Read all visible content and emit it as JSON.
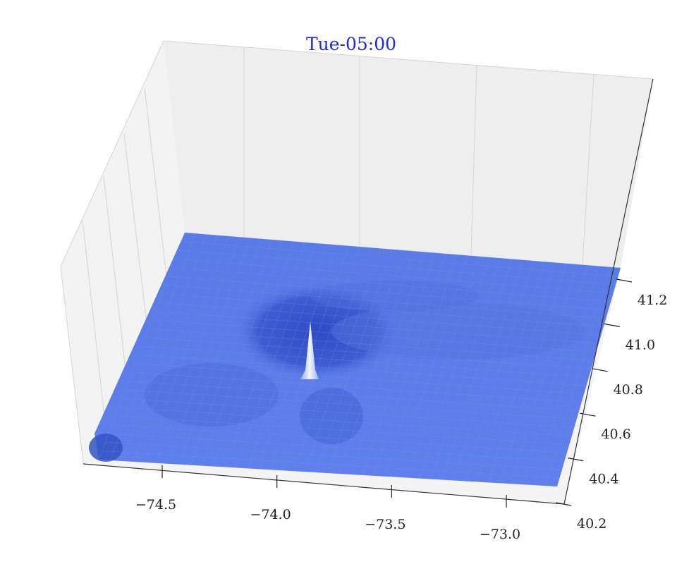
{
  "chart_data": {
    "type": "surface3d",
    "title": "Tue-05:00",
    "xlabel": "",
    "ylabel": "",
    "zlabel": "",
    "grid": true,
    "x_ticks": [
      -74.5,
      -74.0,
      -73.5,
      -73.0
    ],
    "x_tick_labels": [
      "−74.5",
      "−74.0",
      "−73.5",
      "−73.0"
    ],
    "y_ticks": [
      40.2,
      40.4,
      40.6,
      40.8,
      41.0,
      41.2
    ],
    "y_tick_labels": [
      "40.2",
      "40.4",
      "40.6",
      "40.8",
      "41.0",
      "41.2"
    ],
    "xlim": [
      -74.8,
      -72.9
    ],
    "ylim": [
      40.2,
      41.2
    ],
    "surface_color": "#5b7de6",
    "peak": {
      "x": -74.0,
      "y": 40.75,
      "color": "#eef2ff"
    },
    "colors": {
      "title": "#1f2ae0",
      "pane": "#eeeeee",
      "pane_side": "#f3f3f3",
      "grid": "#d4d4d4",
      "surface_light": "#6f8ff0",
      "surface_dark": "#3b58cf"
    }
  }
}
